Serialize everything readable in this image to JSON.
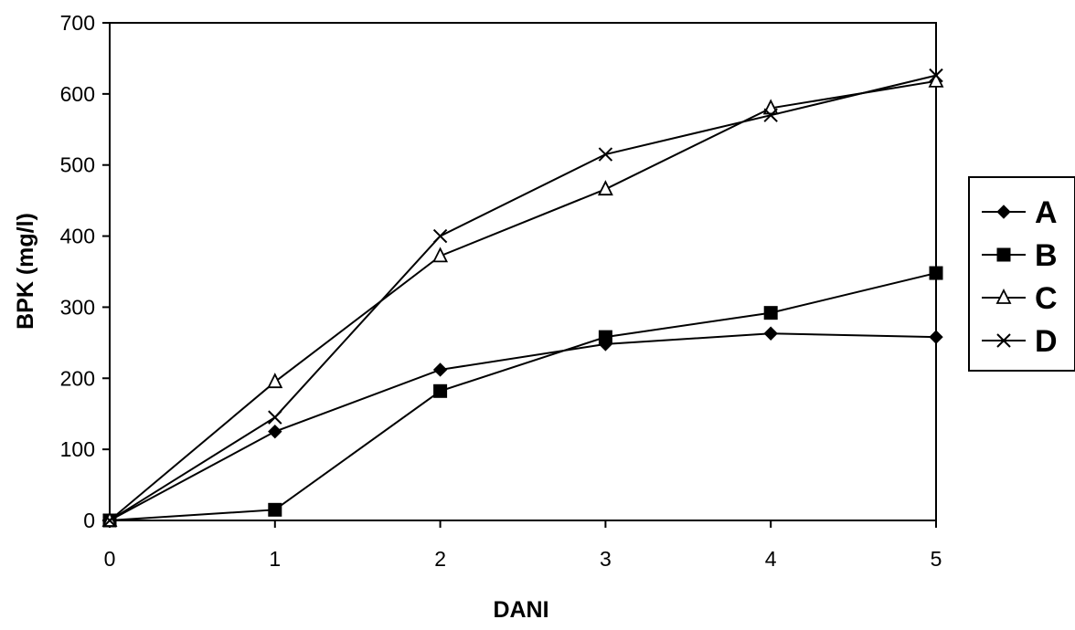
{
  "chart_data": {
    "type": "line",
    "title": "",
    "xlabel": "DANI",
    "ylabel": "BPK (mg/l)",
    "x": [
      0,
      1,
      2,
      3,
      4,
      5
    ],
    "xlim": [
      0,
      5
    ],
    "ylim": [
      0,
      700
    ],
    "x_ticks": [
      "0",
      "1",
      "2",
      "3",
      "4",
      "5"
    ],
    "y_ticks": [
      "0",
      "100",
      "200",
      "300",
      "400",
      "500",
      "600",
      "700"
    ],
    "grid": false,
    "legend_position": "right",
    "series": [
      {
        "name": "A",
        "marker": "diamond",
        "values": [
          0,
          125,
          212,
          248,
          263,
          258
        ]
      },
      {
        "name": "B",
        "marker": "square",
        "values": [
          0,
          15,
          182,
          258,
          292,
          348
        ]
      },
      {
        "name": "C",
        "marker": "triangle",
        "values": [
          0,
          195,
          372,
          466,
          580,
          618
        ]
      },
      {
        "name": "D",
        "marker": "cross",
        "values": [
          0,
          145,
          400,
          515,
          570,
          626
        ]
      }
    ],
    "colors": {
      "line": "#000000",
      "background": "#ffffff"
    }
  }
}
